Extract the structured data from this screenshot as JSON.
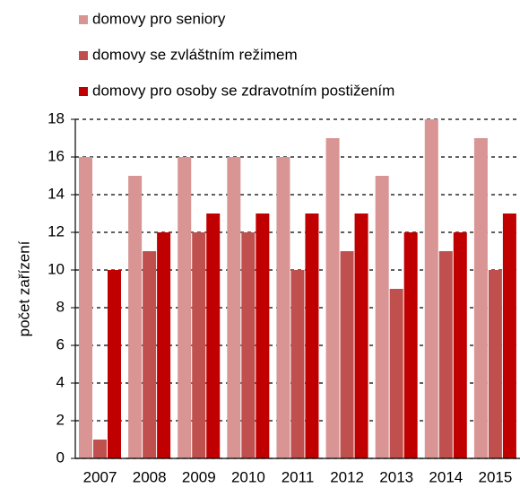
{
  "chart_data": {
    "type": "bar",
    "categories": [
      "2007",
      "2008",
      "2009",
      "2010",
      "2011",
      "2012",
      "2013",
      "2014",
      "2015"
    ],
    "series": [
      {
        "name": "domovy pro seniory",
        "color": "#d99594",
        "values": [
          16,
          15,
          16,
          16,
          16,
          17,
          15,
          18,
          17
        ]
      },
      {
        "name": "domovy se zvláštním režimem",
        "color": "#c0504d",
        "values": [
          1,
          11,
          12,
          12,
          10,
          11,
          9,
          11,
          10
        ]
      },
      {
        "name": "domovy pro osoby se zdravotním postižením",
        "color": "#c00000",
        "values": [
          10,
          12,
          13,
          13,
          13,
          13,
          12,
          12,
          13
        ]
      }
    ],
    "ylabel": "počet zařízení",
    "ylim": [
      0,
      18
    ],
    "yticks": [
      0,
      2,
      4,
      6,
      8,
      10,
      12,
      14,
      16,
      18
    ],
    "grid": true,
    "legend": "top"
  }
}
